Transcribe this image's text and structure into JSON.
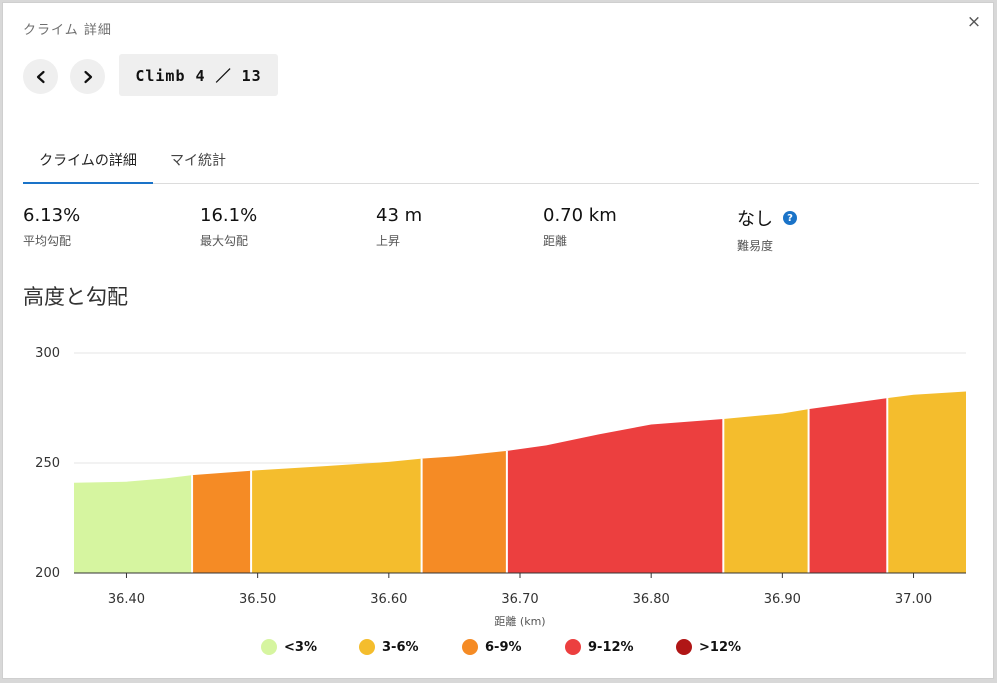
{
  "modal": {
    "title": "クライム 詳細",
    "close_icon": "×",
    "prev_icon": "chevron-left-icon",
    "next_icon": "chevron-right-icon",
    "counter": "Climb 4 ／ 13"
  },
  "tabs": [
    {
      "label": "クライムの詳細",
      "active": true
    },
    {
      "label": "マイ統計",
      "active": false
    }
  ],
  "stats": [
    {
      "value": "6.13%",
      "label": "平均勾配"
    },
    {
      "value": "16.1%",
      "label": "最大勾配"
    },
    {
      "value": "43 m",
      "label": "上昇"
    },
    {
      "value": "0.70 km",
      "label": "距離"
    },
    {
      "value": "なし",
      "label": "難易度",
      "help_icon": "?"
    }
  ],
  "section_title": "高度と勾配",
  "colors": {
    "lt3": "#d6f5a0",
    "3to6": "#f4bd2d",
    "6to9": "#f58b25",
    "9to12": "#ec3f3f",
    "gt12": "#b01616",
    "accent": "#1a73c8"
  },
  "chart_data": {
    "type": "area",
    "xlabel": "距離 (km)",
    "ylabel": "",
    "xlim": [
      36.36,
      37.04
    ],
    "ylim": [
      200,
      300
    ],
    "x_ticks": [
      "36.40",
      "36.50",
      "36.60",
      "36.70",
      "36.80",
      "36.90",
      "37.00"
    ],
    "x_tick_values": [
      36.4,
      36.5,
      36.6,
      36.7,
      36.8,
      36.9,
      37.0
    ],
    "y_ticks": [
      "200",
      "250",
      "300"
    ],
    "y_tick_values": [
      200,
      250,
      300
    ],
    "profile": [
      {
        "x": 36.36,
        "y": 241
      },
      {
        "x": 36.4,
        "y": 241.5
      },
      {
        "x": 36.43,
        "y": 243
      },
      {
        "x": 36.45,
        "y": 244.5
      },
      {
        "x": 36.495,
        "y": 246.5
      },
      {
        "x": 36.55,
        "y": 248.5
      },
      {
        "x": 36.6,
        "y": 250.5
      },
      {
        "x": 36.625,
        "y": 252
      },
      {
        "x": 36.65,
        "y": 253
      },
      {
        "x": 36.69,
        "y": 255.5
      },
      {
        "x": 36.72,
        "y": 258
      },
      {
        "x": 36.76,
        "y": 263
      },
      {
        "x": 36.8,
        "y": 267.5
      },
      {
        "x": 36.855,
        "y": 270
      },
      {
        "x": 36.9,
        "y": 272.5
      },
      {
        "x": 36.92,
        "y": 274.5
      },
      {
        "x": 36.95,
        "y": 277
      },
      {
        "x": 36.98,
        "y": 279.5
      },
      {
        "x": 37.0,
        "y": 281
      },
      {
        "x": 37.04,
        "y": 282.5
      }
    ],
    "segments": [
      {
        "from": 36.36,
        "to": 36.45,
        "grade": "<3%"
      },
      {
        "from": 36.45,
        "to": 36.495,
        "grade": "6-9%"
      },
      {
        "from": 36.495,
        "to": 36.625,
        "grade": "3-6%"
      },
      {
        "from": 36.625,
        "to": 36.69,
        "grade": "6-9%"
      },
      {
        "from": 36.69,
        "to": 36.855,
        "grade": "9-12%"
      },
      {
        "from": 36.855,
        "to": 36.92,
        "grade": "3-6%"
      },
      {
        "from": 36.92,
        "to": 36.98,
        "grade": "9-12%"
      },
      {
        "from": 36.98,
        "to": 37.04,
        "grade": "3-6%"
      }
    ],
    "legend": [
      {
        "label": "<3%",
        "color": "#d6f5a0"
      },
      {
        "label": "3-6%",
        "color": "#f4bd2d"
      },
      {
        "label": "6-9%",
        "color": "#f58b25"
      },
      {
        "label": "9-12%",
        "color": "#ec3f3f"
      },
      {
        "label": ">12%",
        "color": "#b01616"
      }
    ],
    "grid": true
  }
}
